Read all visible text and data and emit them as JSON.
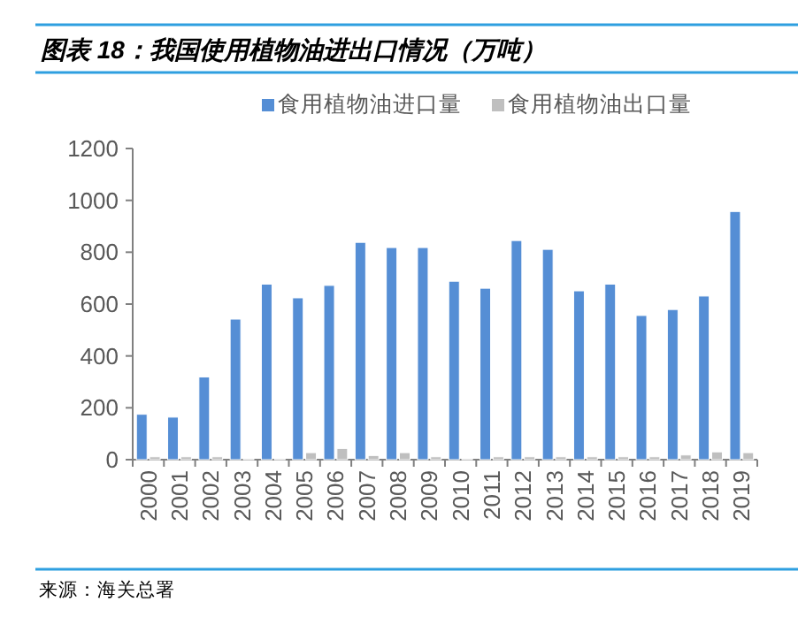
{
  "chart_data": {
    "type": "bar",
    "title": "图表 18：我国使用植物油进出口情况（万吨）",
    "categories": [
      "2000",
      "2001",
      "2002",
      "2003",
      "2004",
      "2005",
      "2006",
      "2007",
      "2008",
      "2009",
      "2010",
      "2011",
      "2012",
      "2013",
      "2014",
      "2015",
      "2016",
      "2017",
      "2018",
      "2019"
    ],
    "series": [
      {
        "name": "食用植物油进口量",
        "color": "#558ed5",
        "values": [
          175,
          164,
          319,
          542,
          677,
          624,
          672,
          838,
          818,
          818,
          688,
          661,
          845,
          811,
          651,
          677,
          556,
          579,
          631,
          957
        ]
      },
      {
        "name": "食用植物油出口量",
        "color": "#bfbfbf",
        "values": [
          11,
          11,
          11,
          4,
          4,
          27,
          43,
          16,
          27,
          11,
          4,
          11,
          11,
          11,
          11,
          11,
          11,
          18,
          30,
          27
        ]
      }
    ],
    "ylim": [
      0,
      1200
    ],
    "yticks": [
      0,
      200,
      400,
      600,
      800,
      1000,
      1200
    ],
    "grid": false,
    "legend": "top",
    "annotations": [
      "来源：海关总署"
    ]
  }
}
